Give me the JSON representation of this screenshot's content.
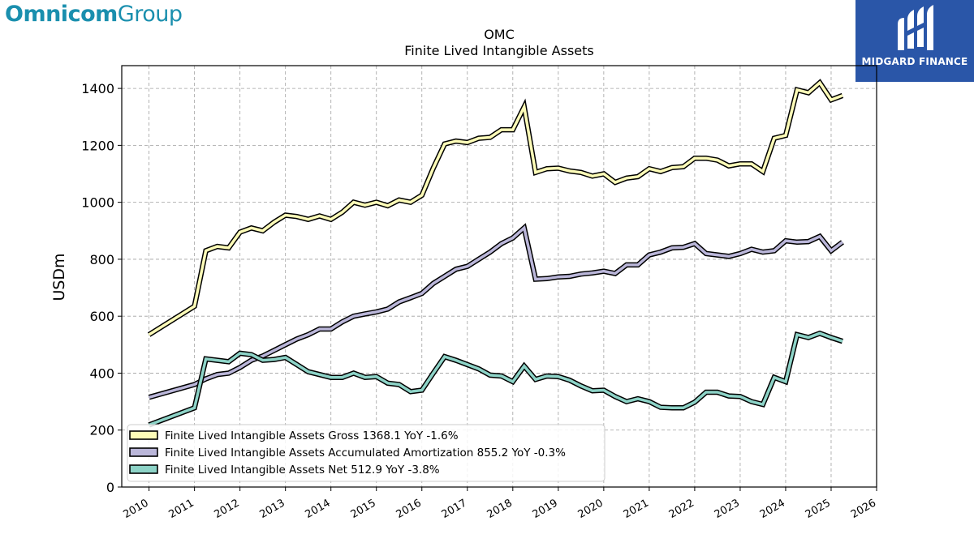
{
  "brand": {
    "left_strong": "Omnicom",
    "left_light": "Group",
    "right_name": "MIDGARD FINANCE",
    "right_logo_icon": "midgard-m-logo-icon"
  },
  "chart_data": {
    "type": "line",
    "title": "OMC",
    "subtitle": "Finite Lived Intangible Assets",
    "ylabel": "USDm",
    "xlabel": "",
    "xlim": [
      2009.4,
      2026
    ],
    "ylim": [
      0,
      1480
    ],
    "xticks": [
      2010,
      2011,
      2012,
      2013,
      2014,
      2015,
      2016,
      2017,
      2018,
      2019,
      2020,
      2021,
      2022,
      2023,
      2024,
      2025,
      2026
    ],
    "yticks": [
      0,
      200,
      400,
      600,
      800,
      1000,
      1200,
      1400
    ],
    "grid": true,
    "legend_position": "lower-left",
    "series": [
      {
        "name": "Finite Lived Intangible Assets Gross",
        "legend": "Finite Lived Intangible Assets Gross  1368.1 YoY -1.6%",
        "color": "#fdfcb8",
        "x": [
          2010.0,
          2011.0,
          2011.25,
          2011.5,
          2011.75,
          2012.0,
          2012.25,
          2012.5,
          2012.75,
          2013.0,
          2013.25,
          2013.5,
          2013.75,
          2014.0,
          2014.25,
          2014.5,
          2014.75,
          2015.0,
          2015.25,
          2015.5,
          2015.75,
          2016.0,
          2016.25,
          2016.5,
          2016.75,
          2017.0,
          2017.25,
          2017.5,
          2017.75,
          2018.0,
          2018.25,
          2018.5,
          2018.75,
          2019.0,
          2019.25,
          2019.5,
          2019.75,
          2020.0,
          2020.25,
          2020.5,
          2020.75,
          2021.0,
          2021.25,
          2021.5,
          2021.75,
          2022.0,
          2022.25,
          2022.5,
          2022.75,
          2023.0,
          2023.25,
          2023.5,
          2023.75,
          2024.0,
          2024.25,
          2024.5,
          2024.75,
          2025.0,
          2025.25
        ],
        "y": [
          535,
          635,
          830,
          845,
          840,
          895,
          910,
          900,
          930,
          955,
          950,
          940,
          952,
          940,
          965,
          1000,
          990,
          1000,
          988,
          1008,
          1000,
          1025,
          1120,
          1205,
          1215,
          1210,
          1225,
          1228,
          1255,
          1255,
          1335,
          1105,
          1118,
          1120,
          1110,
          1105,
          1092,
          1100,
          1070,
          1085,
          1090,
          1118,
          1108,
          1122,
          1125,
          1155,
          1155,
          1148,
          1128,
          1135,
          1135,
          1108,
          1225,
          1235,
          1395,
          1385,
          1420,
          1360,
          1375
        ]
      },
      {
        "name": "Finite Lived Intangible Assets Accumulated Amortization",
        "legend": "Finite Lived Intangible Assets Accumulated Amortization  855.2 YoY -0.3%",
        "color": "#bab6d9",
        "x": [
          2010.0,
          2011.0,
          2011.25,
          2011.5,
          2011.75,
          2012.0,
          2012.25,
          2012.5,
          2012.75,
          2013.0,
          2013.25,
          2013.5,
          2013.75,
          2014.0,
          2014.25,
          2014.5,
          2014.75,
          2015.0,
          2015.25,
          2015.5,
          2015.75,
          2016.0,
          2016.25,
          2016.5,
          2016.75,
          2017.0,
          2017.25,
          2017.5,
          2017.75,
          2018.0,
          2018.25,
          2018.5,
          2018.75,
          2019.0,
          2019.25,
          2019.5,
          2019.75,
          2020.0,
          2020.25,
          2020.5,
          2020.75,
          2021.0,
          2021.25,
          2021.5,
          2021.75,
          2022.0,
          2022.25,
          2022.5,
          2022.75,
          2023.0,
          2023.25,
          2023.5,
          2023.75,
          2024.0,
          2024.25,
          2024.5,
          2024.75,
          2025.0,
          2025.25
        ],
        "y": [
          315,
          360,
          380,
          395,
          400,
          420,
          445,
          460,
          480,
          500,
          520,
          535,
          555,
          555,
          580,
          600,
          608,
          615,
          625,
          650,
          665,
          680,
          715,
          740,
          765,
          775,
          800,
          825,
          855,
          875,
          910,
          730,
          732,
          738,
          740,
          748,
          752,
          758,
          750,
          780,
          780,
          815,
          825,
          840,
          842,
          855,
          820,
          815,
          810,
          820,
          835,
          825,
          830,
          865,
          860,
          862,
          880,
          830,
          860
        ]
      },
      {
        "name": "Finite Lived Intangible Assets Net",
        "legend": "Finite Lived Intangible Assets Net  512.9 YoY -3.8%",
        "color": "#8dd3c7",
        "x": [
          2010.0,
          2011.0,
          2011.25,
          2011.5,
          2011.75,
          2012.0,
          2012.25,
          2012.5,
          2012.75,
          2013.0,
          2013.25,
          2013.5,
          2013.75,
          2014.0,
          2014.25,
          2014.5,
          2014.75,
          2015.0,
          2015.25,
          2015.5,
          2015.75,
          2016.0,
          2016.25,
          2016.5,
          2016.75,
          2017.0,
          2017.25,
          2017.5,
          2017.75,
          2018.0,
          2018.25,
          2018.5,
          2018.75,
          2019.0,
          2019.25,
          2019.5,
          2019.75,
          2020.0,
          2020.25,
          2020.5,
          2020.75,
          2021.0,
          2021.25,
          2021.5,
          2021.75,
          2022.0,
          2022.25,
          2022.5,
          2022.75,
          2023.0,
          2023.25,
          2023.5,
          2023.75,
          2024.0,
          2024.25,
          2024.5,
          2024.75,
          2025.0,
          2025.25
        ],
        "y": [
          218,
          278,
          450,
          445,
          440,
          470,
          465,
          445,
          448,
          455,
          430,
          405,
          395,
          385,
          385,
          400,
          385,
          388,
          365,
          360,
          335,
          340,
          400,
          458,
          445,
          430,
          415,
          393,
          390,
          370,
          425,
          378,
          390,
          388,
          375,
          355,
          338,
          340,
          318,
          300,
          310,
          300,
          280,
          278,
          278,
          298,
          333,
          333,
          320,
          318,
          300,
          290,
          385,
          370,
          535,
          525,
          540,
          525,
          512
        ]
      }
    ]
  }
}
